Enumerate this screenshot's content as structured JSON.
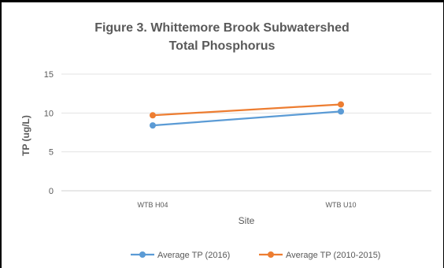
{
  "chart_data": {
    "type": "line",
    "title_line1": "Figure 3. Whittemore Brook Subwatershed",
    "title_line2": "Total Phosphorus",
    "xlabel": "Site",
    "ylabel": "TP (ug/L)",
    "categories": [
      "WTB H04",
      "WTB U10"
    ],
    "ylim": [
      0,
      15
    ],
    "yticks": [
      0,
      5,
      10,
      15
    ],
    "grid": true,
    "legend_position": "bottom",
    "series": [
      {
        "name": "Average TP (2016)",
        "color": "#5B9BD5",
        "values": [
          8.4,
          10.2
        ]
      },
      {
        "name": "Average TP (2010-2015)",
        "color": "#ED7D31",
        "values": [
          9.7,
          11.1
        ]
      }
    ]
  }
}
